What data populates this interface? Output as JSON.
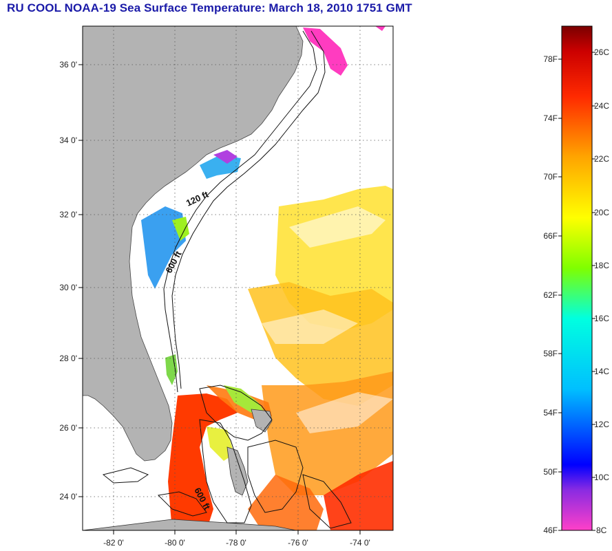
{
  "title": "RU COOL  NOAA-19  Sea Surface Temperature:  March 18, 2010 1751 GMT",
  "map": {
    "lat_ticks": [
      "36 0'",
      "34 0'",
      "32 0'",
      "30 0'",
      "28 0'",
      "26 0'",
      "24 0'"
    ],
    "lon_ticks": [
      "-82 0'",
      "-80 0'",
      "-78 0'",
      "-76 0'",
      "-74 0'"
    ],
    "contour_labels": [
      "120 ft",
      "600 ft",
      "600 ft"
    ]
  },
  "colorbar": {
    "fahrenheit_labels": [
      "78F",
      "74F",
      "70F",
      "66F",
      "62F",
      "58F",
      "54F",
      "50F",
      "46F"
    ],
    "celsius_labels": [
      "26C",
      "24C",
      "22C",
      "20C",
      "18C",
      "16C",
      "14C",
      "12C",
      "10C",
      "8C"
    ]
  },
  "colors": {
    "title": "#1a1aa8",
    "land": "#b3b3b3",
    "warm": "#ff3c00",
    "cool": "#1e90ff"
  }
}
